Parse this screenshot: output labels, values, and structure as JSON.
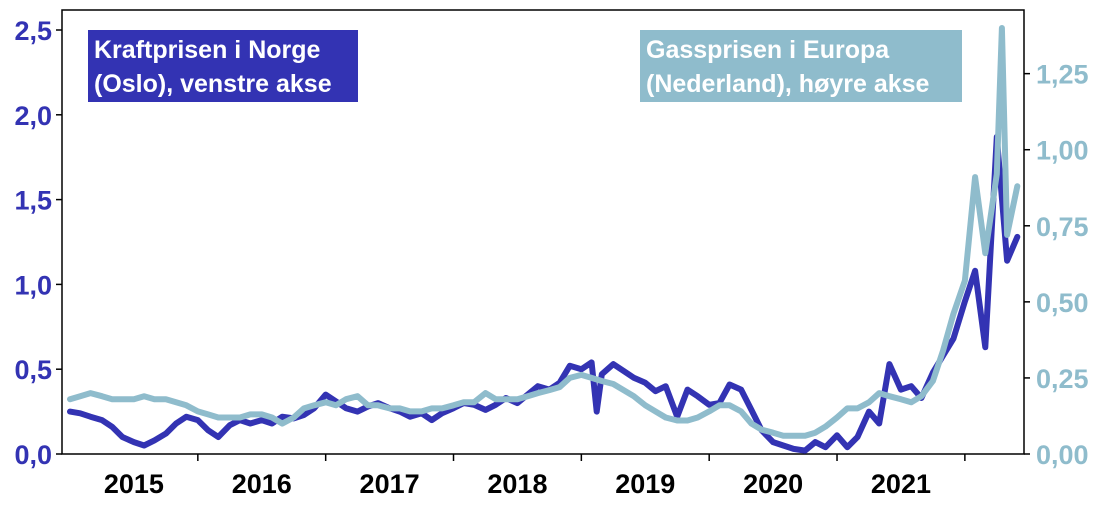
{
  "chart_data": {
    "type": "line",
    "title": "",
    "xlabel": "",
    "ylabel_left": "",
    "ylabel_right": "",
    "colors": {
      "left": "#3333b3",
      "right": "#8fbccc",
      "axis": "#000000"
    },
    "x_range": [
      2014.5,
      2021.9
    ],
    "x_ticks": [
      {
        "value": 2015,
        "label": "2015"
      },
      {
        "value": 2016,
        "label": "2016"
      },
      {
        "value": 2017,
        "label": "2017"
      },
      {
        "value": 2018,
        "label": "2018"
      },
      {
        "value": 2019,
        "label": "2019"
      },
      {
        "value": 2020,
        "label": "2020"
      },
      {
        "value": 2021,
        "label": "2021"
      }
    ],
    "y_left": {
      "range": [
        0,
        2.5
      ],
      "ticks": [
        {
          "value": 0,
          "label": "0,0"
        },
        {
          "value": 0.5,
          "label": "0,5"
        },
        {
          "value": 1.0,
          "label": "1,0"
        },
        {
          "value": 1.5,
          "label": "1,5"
        },
        {
          "value": 2.0,
          "label": "2,0"
        },
        {
          "value": 2.5,
          "label": "2,5"
        }
      ]
    },
    "y_right": {
      "range": [
        0,
        1.4
      ],
      "ticks": [
        {
          "value": 0,
          "label": "0,00"
        },
        {
          "value": 0.25,
          "label": "0,25"
        },
        {
          "value": 0.5,
          "label": "0,50"
        },
        {
          "value": 0.75,
          "label": "0,75"
        },
        {
          "value": 1.0,
          "label": "1,00"
        },
        {
          "value": 1.25,
          "label": "1,25"
        }
      ]
    },
    "series": [
      {
        "name": "Kraftprisen i Norge (Oslo), venstre akse",
        "axis": "left",
        "legend_lines": [
          "Kraftprisen i Norge",
          "(Oslo), venstre akse"
        ],
        "points": [
          [
            2014.5,
            0.25
          ],
          [
            2014.58,
            0.24
          ],
          [
            2014.66,
            0.22
          ],
          [
            2014.75,
            0.2
          ],
          [
            2014.83,
            0.16
          ],
          [
            2014.91,
            0.1
          ],
          [
            2015.0,
            0.07
          ],
          [
            2015.08,
            0.05
          ],
          [
            2015.16,
            0.08
          ],
          [
            2015.25,
            0.12
          ],
          [
            2015.33,
            0.18
          ],
          [
            2015.41,
            0.22
          ],
          [
            2015.5,
            0.2
          ],
          [
            2015.58,
            0.14
          ],
          [
            2015.66,
            0.1
          ],
          [
            2015.75,
            0.17
          ],
          [
            2015.83,
            0.2
          ],
          [
            2015.91,
            0.18
          ],
          [
            2016.0,
            0.2
          ],
          [
            2016.08,
            0.18
          ],
          [
            2016.16,
            0.22
          ],
          [
            2016.25,
            0.21
          ],
          [
            2016.33,
            0.23
          ],
          [
            2016.41,
            0.27
          ],
          [
            2016.5,
            0.35
          ],
          [
            2016.58,
            0.31
          ],
          [
            2016.66,
            0.27
          ],
          [
            2016.75,
            0.25
          ],
          [
            2016.83,
            0.28
          ],
          [
            2016.91,
            0.3
          ],
          [
            2017.0,
            0.27
          ],
          [
            2017.08,
            0.25
          ],
          [
            2017.16,
            0.22
          ],
          [
            2017.25,
            0.24
          ],
          [
            2017.33,
            0.2
          ],
          [
            2017.41,
            0.24
          ],
          [
            2017.5,
            0.27
          ],
          [
            2017.58,
            0.3
          ],
          [
            2017.66,
            0.29
          ],
          [
            2017.75,
            0.26
          ],
          [
            2017.83,
            0.29
          ],
          [
            2017.91,
            0.33
          ],
          [
            2018.0,
            0.3
          ],
          [
            2018.08,
            0.35
          ],
          [
            2018.16,
            0.4
          ],
          [
            2018.25,
            0.38
          ],
          [
            2018.33,
            0.42
          ],
          [
            2018.41,
            0.52
          ],
          [
            2018.5,
            0.5
          ],
          [
            2018.58,
            0.54
          ],
          [
            2018.62,
            0.25
          ],
          [
            2018.66,
            0.47
          ],
          [
            2018.75,
            0.53
          ],
          [
            2018.83,
            0.49
          ],
          [
            2018.91,
            0.45
          ],
          [
            2019.0,
            0.42
          ],
          [
            2019.08,
            0.37
          ],
          [
            2019.16,
            0.4
          ],
          [
            2019.25,
            0.22
          ],
          [
            2019.33,
            0.38
          ],
          [
            2019.41,
            0.34
          ],
          [
            2019.5,
            0.29
          ],
          [
            2019.58,
            0.3
          ],
          [
            2019.66,
            0.41
          ],
          [
            2019.75,
            0.38
          ],
          [
            2019.83,
            0.26
          ],
          [
            2019.91,
            0.14
          ],
          [
            2020.0,
            0.07
          ],
          [
            2020.08,
            0.05
          ],
          [
            2020.16,
            0.03
          ],
          [
            2020.25,
            0.02
          ],
          [
            2020.33,
            0.07
          ],
          [
            2020.41,
            0.04
          ],
          [
            2020.5,
            0.11
          ],
          [
            2020.58,
            0.04
          ],
          [
            2020.66,
            0.1
          ],
          [
            2020.75,
            0.25
          ],
          [
            2020.83,
            0.18
          ],
          [
            2020.91,
            0.53
          ],
          [
            2021.0,
            0.38
          ],
          [
            2021.08,
            0.4
          ],
          [
            2021.16,
            0.33
          ],
          [
            2021.25,
            0.48
          ],
          [
            2021.33,
            0.58
          ],
          [
            2021.41,
            0.68
          ],
          [
            2021.5,
            0.9
          ],
          [
            2021.58,
            1.08
          ],
          [
            2021.66,
            0.63
          ],
          [
            2021.75,
            1.87
          ],
          [
            2021.83,
            1.14
          ],
          [
            2021.91,
            1.28
          ]
        ]
      },
      {
        "name": "Gassprisen i Europa (Nederland), høyre akse",
        "axis": "right",
        "legend_lines": [
          "Gassprisen i Europa",
          "(Nederland), høyre akse"
        ],
        "points": [
          [
            2014.5,
            0.18
          ],
          [
            2014.58,
            0.19
          ],
          [
            2014.66,
            0.2
          ],
          [
            2014.75,
            0.19
          ],
          [
            2014.83,
            0.18
          ],
          [
            2014.91,
            0.18
          ],
          [
            2015.0,
            0.18
          ],
          [
            2015.08,
            0.19
          ],
          [
            2015.16,
            0.18
          ],
          [
            2015.25,
            0.18
          ],
          [
            2015.33,
            0.17
          ],
          [
            2015.41,
            0.16
          ],
          [
            2015.5,
            0.14
          ],
          [
            2015.58,
            0.13
          ],
          [
            2015.66,
            0.12
          ],
          [
            2015.75,
            0.12
          ],
          [
            2015.83,
            0.12
          ],
          [
            2015.91,
            0.13
          ],
          [
            2016.0,
            0.13
          ],
          [
            2016.08,
            0.12
          ],
          [
            2016.16,
            0.1
          ],
          [
            2016.25,
            0.12
          ],
          [
            2016.33,
            0.15
          ],
          [
            2016.41,
            0.16
          ],
          [
            2016.5,
            0.17
          ],
          [
            2016.58,
            0.16
          ],
          [
            2016.66,
            0.18
          ],
          [
            2016.75,
            0.19
          ],
          [
            2016.83,
            0.16
          ],
          [
            2016.91,
            0.16
          ],
          [
            2017.0,
            0.15
          ],
          [
            2017.08,
            0.15
          ],
          [
            2017.16,
            0.14
          ],
          [
            2017.25,
            0.14
          ],
          [
            2017.33,
            0.15
          ],
          [
            2017.41,
            0.15
          ],
          [
            2017.5,
            0.16
          ],
          [
            2017.58,
            0.17
          ],
          [
            2017.66,
            0.17
          ],
          [
            2017.75,
            0.2
          ],
          [
            2017.83,
            0.18
          ],
          [
            2017.91,
            0.18
          ],
          [
            2018.0,
            0.18
          ],
          [
            2018.08,
            0.19
          ],
          [
            2018.16,
            0.2
          ],
          [
            2018.25,
            0.21
          ],
          [
            2018.33,
            0.22
          ],
          [
            2018.41,
            0.25
          ],
          [
            2018.5,
            0.26
          ],
          [
            2018.58,
            0.25
          ],
          [
            2018.66,
            0.24
          ],
          [
            2018.75,
            0.23
          ],
          [
            2018.83,
            0.21
          ],
          [
            2018.91,
            0.19
          ],
          [
            2019.0,
            0.16
          ],
          [
            2019.08,
            0.14
          ],
          [
            2019.16,
            0.12
          ],
          [
            2019.25,
            0.11
          ],
          [
            2019.33,
            0.11
          ],
          [
            2019.41,
            0.12
          ],
          [
            2019.5,
            0.14
          ],
          [
            2019.58,
            0.16
          ],
          [
            2019.66,
            0.16
          ],
          [
            2019.75,
            0.14
          ],
          [
            2019.83,
            0.1
          ],
          [
            2019.91,
            0.08
          ],
          [
            2020.0,
            0.07
          ],
          [
            2020.08,
            0.06
          ],
          [
            2020.16,
            0.06
          ],
          [
            2020.25,
            0.06
          ],
          [
            2020.33,
            0.07
          ],
          [
            2020.41,
            0.09
          ],
          [
            2020.5,
            0.12
          ],
          [
            2020.58,
            0.15
          ],
          [
            2020.66,
            0.15
          ],
          [
            2020.75,
            0.17
          ],
          [
            2020.83,
            0.2
          ],
          [
            2020.91,
            0.19
          ],
          [
            2021.0,
            0.18
          ],
          [
            2021.08,
            0.17
          ],
          [
            2021.16,
            0.19
          ],
          [
            2021.25,
            0.24
          ],
          [
            2021.33,
            0.34
          ],
          [
            2021.41,
            0.46
          ],
          [
            2021.5,
            0.57
          ],
          [
            2021.58,
            0.91
          ],
          [
            2021.66,
            0.66
          ],
          [
            2021.75,
            0.92
          ],
          [
            2021.79,
            1.4
          ],
          [
            2021.83,
            0.72
          ],
          [
            2021.91,
            0.88
          ]
        ]
      }
    ]
  }
}
